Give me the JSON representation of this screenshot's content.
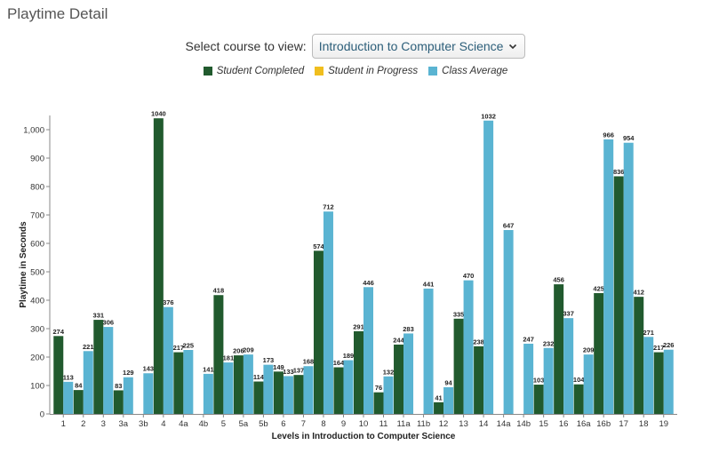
{
  "page": {
    "title": "Playtime Detail",
    "course_label": "Select course to view:",
    "course_selected": "Introduction to Computer Science"
  },
  "colors": {
    "completed": "#215a2e",
    "in_progress": "#f0be1e",
    "average": "#5ab4d2"
  },
  "chart_data": {
    "type": "bar",
    "xlabel": "Levels in Introduction to Computer Science",
    "ylabel": "Playtime in Seconds",
    "ylim": [
      0,
      1050
    ],
    "yticks": [
      0,
      100,
      200,
      300,
      400,
      500,
      600,
      700,
      800,
      900,
      1000
    ],
    "ytick_labels": [
      "0",
      "100",
      "200",
      "300",
      "400",
      "500",
      "600",
      "700",
      "800",
      "900",
      "1,000"
    ],
    "legend_position": "top-center",
    "categories": [
      "1",
      "2",
      "3",
      "3a",
      "3b",
      "4",
      "4a",
      "4b",
      "5",
      "5a",
      "5b",
      "6",
      "7",
      "8",
      "9",
      "10",
      "11",
      "11a",
      "11b",
      "12",
      "13",
      "14",
      "14a",
      "14b",
      "15",
      "16",
      "16a",
      "16b",
      "17",
      "18",
      "19"
    ],
    "series": [
      {
        "name": "Student Completed",
        "values": [
          274,
          84,
          331,
          83,
          null,
          1040,
          217,
          null,
          418,
          206,
          114,
          149,
          137,
          574,
          164,
          291,
          76,
          244,
          null,
          41,
          335,
          238,
          null,
          null,
          103,
          456,
          104,
          425,
          836,
          412,
          217
        ]
      },
      {
        "name": "Student in Progress",
        "values": [
          null,
          null,
          null,
          null,
          null,
          null,
          null,
          null,
          null,
          null,
          null,
          null,
          null,
          null,
          null,
          null,
          null,
          null,
          null,
          null,
          null,
          null,
          null,
          null,
          null,
          null,
          null,
          null,
          null,
          null,
          null
        ]
      },
      {
        "name": "Class Average",
        "values": [
          113,
          221,
          306,
          129,
          143,
          376,
          225,
          141,
          181,
          209,
          173,
          133,
          168,
          712,
          189,
          446,
          132,
          283,
          441,
          94,
          470,
          1032,
          647,
          247,
          232,
          337,
          209,
          966,
          954,
          271,
          226
        ]
      }
    ]
  }
}
